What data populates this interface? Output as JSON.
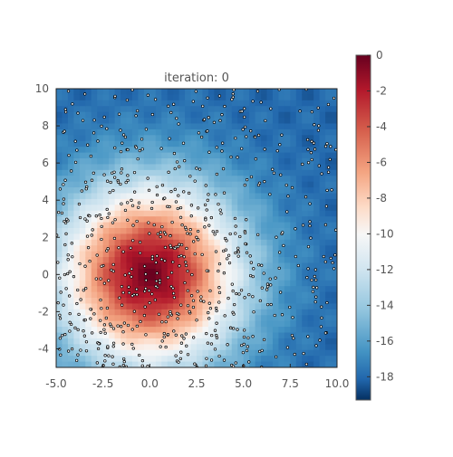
{
  "chart_data": {
    "type": "heatmap",
    "title": "iteration: 0",
    "xlabel": "",
    "ylabel": "",
    "xlim": [
      -5.0,
      10.0
    ],
    "ylim": [
      -5.0,
      10.0
    ],
    "x_ticks": [
      "-5.0",
      "-2.5",
      "0.0",
      "2.5",
      "5.0",
      "7.5",
      "10.0"
    ],
    "y_ticks": [
      "-4",
      "-2",
      "0",
      "2",
      "4",
      "6",
      "8",
      "10"
    ],
    "colorbar": {
      "colormap": "RdBu",
      "range": [
        -19.3,
        0
      ],
      "ticks": [
        "0",
        "-2",
        "-4",
        "-6",
        "-8",
        "-10",
        "-12",
        "-14",
        "-16",
        "-18"
      ]
    },
    "field": {
      "peak_location": [
        0.0,
        0.0
      ],
      "peak_value": -0.5,
      "background_value": -18.0
    },
    "particles": {
      "count": 700,
      "marker_color": "#000000",
      "marker_face": "#ffffff"
    }
  }
}
